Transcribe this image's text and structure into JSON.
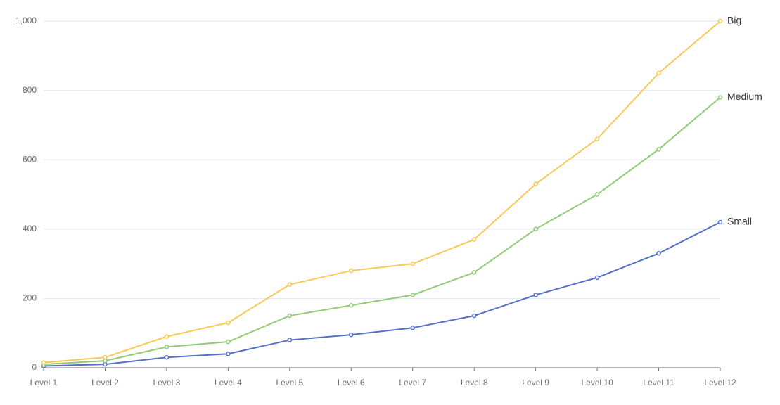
{
  "chart_data": {
    "type": "line",
    "categories": [
      "Level 1",
      "Level 2",
      "Level 3",
      "Level 4",
      "Level 5",
      "Level 6",
      "Level 7",
      "Level 8",
      "Level 9",
      "Level 10",
      "Level 11",
      "Level 12"
    ],
    "series": [
      {
        "name": "Small",
        "color": "#5470c6",
        "values": [
          5,
          10,
          30,
          40,
          80,
          95,
          115,
          150,
          210,
          260,
          330,
          420
        ]
      },
      {
        "name": "Medium",
        "color": "#91cc75",
        "values": [
          10,
          20,
          60,
          75,
          150,
          180,
          210,
          275,
          400,
          500,
          630,
          780
        ]
      },
      {
        "name": "Big",
        "color": "#fac858",
        "values": [
          15,
          30,
          90,
          130,
          240,
          280,
          300,
          370,
          530,
          660,
          850,
          1000
        ]
      }
    ],
    "ylim": [
      0,
      1000
    ],
    "yticks": [
      0,
      200,
      400,
      600,
      800,
      {
        "value": 1000,
        "label": "1,000"
      }
    ],
    "grid": true
  }
}
